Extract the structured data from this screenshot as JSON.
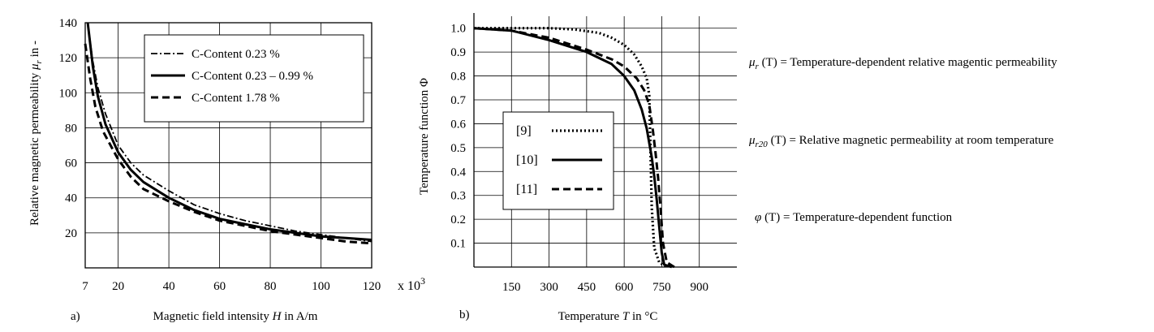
{
  "chart_data": [
    {
      "type": "line",
      "panel": "a)",
      "xlabel": "Magnetic field intensity H in A/m",
      "xlabel_parts": [
        "Magnetic field intensity ",
        "H",
        " in A/m"
      ],
      "ylabel": "Relative magnetic permeability μr in -",
      "ylabel_parts": [
        "Relative magnetic permeability ",
        "μ",
        "r",
        " in -"
      ],
      "x_multiplier": "x 10",
      "x_multiplier_exp": "3",
      "xlim": [
        7,
        120
      ],
      "ylim": [
        0,
        140
      ],
      "xticks": [
        7,
        20,
        40,
        60,
        80,
        100,
        120
      ],
      "yticks": [
        20,
        40,
        60,
        80,
        100,
        120,
        140
      ],
      "grid": true,
      "legend_position": "top-right",
      "series": [
        {
          "name": "C-Content 0.23 %",
          "style": "dashdot",
          "x": [
            8,
            10,
            12,
            15,
            20,
            25,
            30,
            40,
            50,
            60,
            70,
            80,
            90,
            100,
            110,
            120
          ],
          "y": [
            140,
            118,
            103,
            88,
            70,
            60,
            53,
            44,
            36,
            31,
            27,
            24,
            21,
            19,
            17,
            15
          ]
        },
        {
          "name": "C-Content 0.23 – 0.99 %",
          "style": "solid",
          "x": [
            8,
            10,
            12,
            15,
            20,
            25,
            30,
            40,
            50,
            60,
            70,
            80,
            90,
            100,
            110,
            120
          ],
          "y": [
            140,
            115,
            98,
            82,
            66,
            56,
            49,
            40,
            33,
            28,
            25,
            22,
            20,
            18,
            17,
            16
          ]
        },
        {
          "name": "C-Content 1.78 %",
          "style": "dashed",
          "x": [
            7,
            9,
            11,
            14,
            20,
            25,
            30,
            40,
            50,
            60,
            70,
            80,
            90,
            100,
            110,
            120
          ],
          "y": [
            128,
            108,
            92,
            78,
            62,
            52,
            45,
            38,
            32,
            27,
            24,
            21,
            19,
            17,
            15,
            14
          ]
        }
      ]
    },
    {
      "type": "line",
      "panel": "b)",
      "xlabel": "Temperature T in °C",
      "xlabel_parts": [
        "Temperature ",
        "T",
        " in °C"
      ],
      "ylabel": "Temperature function Φ",
      "xlim": [
        0,
        1050
      ],
      "ylim": [
        0,
        1.05
      ],
      "xticks": [
        150,
        300,
        450,
        600,
        750,
        900
      ],
      "yticks": [
        0.1,
        0.2,
        0.3,
        0.4,
        0.5,
        0.6,
        0.7,
        0.8,
        0.9,
        1.0
      ],
      "ytick_labels": [
        "0.1",
        "0.2",
        "0.3",
        "0.4",
        "0.5",
        "0.6",
        "0.7",
        "0.8",
        "0.9",
        "1.0"
      ],
      "grid": true,
      "legend_position": "left-center",
      "series": [
        {
          "name": "[9]",
          "style": "dotted",
          "x": [
            0,
            150,
            300,
            400,
            500,
            550,
            600,
            640,
            670,
            690,
            700,
            705,
            710,
            720,
            740,
            770
          ],
          "y": [
            1.0,
            1.0,
            1.0,
            0.995,
            0.98,
            0.96,
            0.93,
            0.89,
            0.84,
            0.79,
            0.72,
            0.5,
            0.25,
            0.08,
            0.02,
            0.0
          ]
        },
        {
          "name": "[10]",
          "style": "solid",
          "x": [
            0,
            150,
            300,
            450,
            550,
            600,
            640,
            670,
            690,
            710,
            720,
            730,
            740,
            750,
            760,
            790
          ],
          "y": [
            1.0,
            0.99,
            0.95,
            0.9,
            0.85,
            0.8,
            0.74,
            0.66,
            0.58,
            0.46,
            0.38,
            0.28,
            0.17,
            0.06,
            0.01,
            0.0
          ]
        },
        {
          "name": "[11]",
          "style": "dashed",
          "x": [
            0,
            150,
            300,
            450,
            550,
            600,
            650,
            680,
            700,
            715,
            725,
            735,
            745,
            755,
            770,
            800
          ],
          "y": [
            1.0,
            0.99,
            0.96,
            0.91,
            0.87,
            0.84,
            0.79,
            0.74,
            0.68,
            0.57,
            0.48,
            0.38,
            0.25,
            0.1,
            0.02,
            0.0
          ]
        }
      ]
    }
  ],
  "annotations": {
    "line1_sym": "μ",
    "line1_sub": "r",
    "line1_arg": " (T)",
    "line1_text": " = Temperature-dependent relative magentic permeability",
    "line2_sym": "μ",
    "line2_sub": "r20",
    "line2_arg": " (T)",
    "line2_text": " = Relative magnetic permeability at room temperature",
    "line3_sym": "φ",
    "line3_arg": " (T)",
    "line3_text": " = Temperature-dependent function"
  }
}
